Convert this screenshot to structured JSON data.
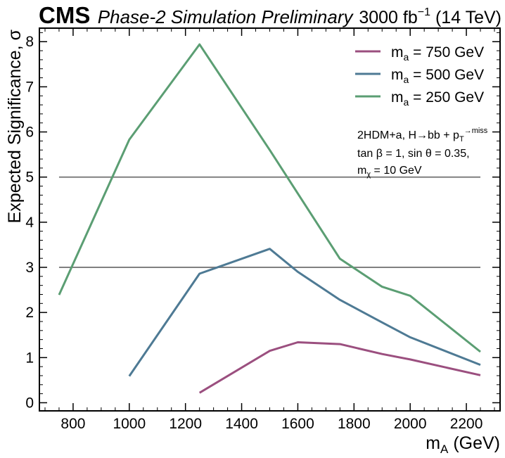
{
  "header": {
    "experiment": "CMS",
    "status": "Phase-2 Simulation Preliminary",
    "lumi_value": "3000 fb",
    "lumi_exp": "−1",
    "energy": " (14 TeV)"
  },
  "annotation": {
    "line1": "2HDM+a, H→bb + p",
    "line1_sub": "T",
    "line1_sup": "→miss",
    "line2": "tan β = 1, sin θ = 0.35,",
    "line3_main": "m",
    "line3_sub": "χ",
    "line3_rest": " = 10 GeV"
  },
  "chart_data": {
    "type": "line",
    "xlabel": "m",
    "xlabel_sub": "A",
    "xlabel_unit": " (GeV)",
    "ylabel": "Expected Significance, σ",
    "xlim": [
      680,
      2320
    ],
    "ylim": [
      -0.18,
      8.3
    ],
    "x_ticks": [
      800,
      1000,
      1200,
      1400,
      1600,
      1800,
      2000,
      2200
    ],
    "y_ticks": [
      0,
      1,
      2,
      3,
      4,
      5,
      6,
      7,
      8
    ],
    "legend_position": "top-right",
    "series": [
      {
        "name_main": "m",
        "name_sub": "a",
        "name_rest": " = 750 GeV",
        "color": "#9b4f7f",
        "x": [
          1250,
          1500,
          1600,
          1750,
          1900,
          2000,
          2250
        ],
        "y": [
          0.22,
          1.15,
          1.34,
          1.3,
          1.08,
          0.96,
          0.61
        ]
      },
      {
        "name_main": "m",
        "name_sub": "a",
        "name_rest": " = 500 GeV",
        "color": "#4e7a94",
        "x": [
          1000,
          1250,
          1500,
          1600,
          1750,
          1900,
          2000,
          2250
        ],
        "y": [
          0.59,
          2.86,
          3.41,
          2.9,
          2.28,
          1.78,
          1.45,
          0.84
        ]
      },
      {
        "name_main": "m",
        "name_sub": "a",
        "name_rest": " = 250 GeV",
        "color": "#5b9e73",
        "x": [
          750,
          1000,
          1250,
          1500,
          1750,
          1900,
          2000,
          2250
        ],
        "y": [
          2.39,
          5.83,
          7.94,
          5.6,
          3.19,
          2.57,
          2.37,
          1.13
        ]
      }
    ],
    "reference_lines": [
      {
        "y": 3,
        "x_from": 750,
        "x_to": 2250,
        "color": "#808080"
      },
      {
        "y": 5,
        "x_from": 750,
        "x_to": 2250,
        "color": "#808080"
      }
    ]
  }
}
